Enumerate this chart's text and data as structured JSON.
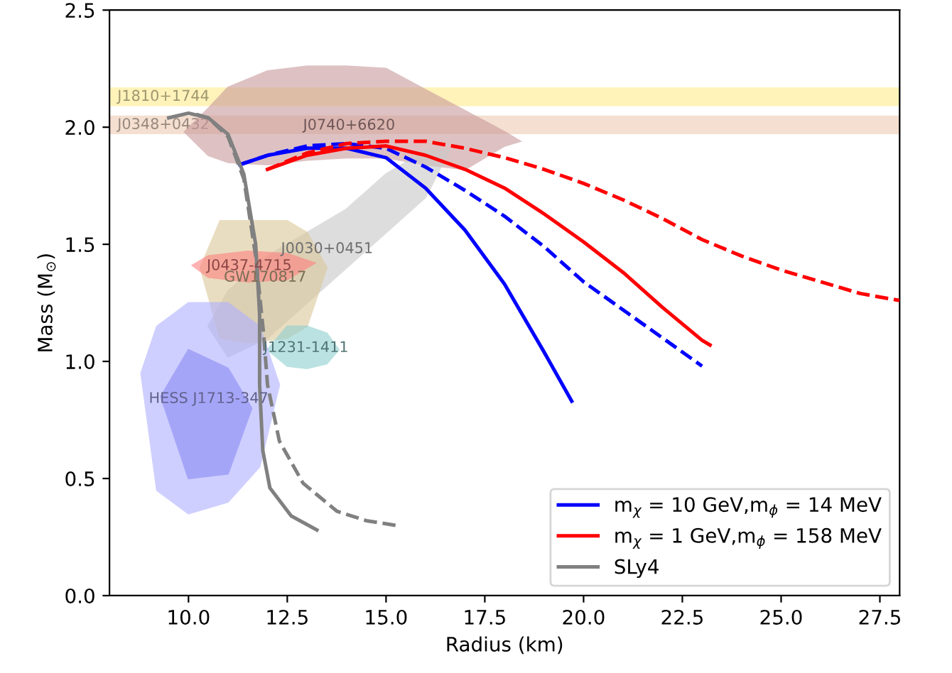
{
  "chart_data": {
    "type": "line",
    "xlabel": "Radius (km)",
    "ylabel": "Mass (M$_{⊙}$)",
    "xlim": [
      8,
      28
    ],
    "ylim": [
      0,
      2.5
    ],
    "xticks": [
      {
        "value": 10,
        "label": "10.0"
      },
      {
        "value": 12.5,
        "label": "12.5"
      },
      {
        "value": 15,
        "label": "15.0"
      },
      {
        "value": 17.5,
        "label": "17.5"
      },
      {
        "value": 20,
        "label": "20.0"
      },
      {
        "value": 22.5,
        "label": "22.5"
      },
      {
        "value": 25,
        "label": "25.0"
      },
      {
        "value": 27.5,
        "label": "27.5"
      }
    ],
    "yticks": [
      {
        "value": 0,
        "label": "0.0"
      },
      {
        "value": 0.5,
        "label": "0.5"
      },
      {
        "value": 1,
        "label": "1.0"
      },
      {
        "value": 1.5,
        "label": "1.5"
      },
      {
        "value": 2,
        "label": "2.0"
      },
      {
        "value": 2.5,
        "label": "2.5"
      }
    ],
    "grid": false,
    "legend": "bottom right",
    "bands": [
      {
        "axis": "y",
        "from": 2.09,
        "to": 2.17,
        "label": "J1810+1744",
        "color": "#fff2b3"
      },
      {
        "axis": "y",
        "from": 1.97,
        "to": 2.05,
        "label": "J0348+0432",
        "color": "#f3dccb"
      }
    ],
    "series": [
      {
        "type": "area",
        "name": "J0740+6620",
        "color": "#c99a9c",
        "x": [
          9.9,
          10.5,
          11,
          12,
          13,
          14,
          15,
          16,
          17,
          18,
          18.4,
          18,
          17,
          16,
          15,
          14,
          13,
          12,
          11,
          10.5
        ],
        "values": [
          1.98,
          2.08,
          2.17,
          2.24,
          2.26,
          2.26,
          2.25,
          2.16,
          2.07,
          1.98,
          1.94,
          1.92,
          1.82,
          1.84,
          1.87,
          1.87,
          1.86,
          1.84,
          1.85,
          1.88
        ]
      },
      {
        "type": "area",
        "name": "J0030+0451",
        "color": "#c8c8c8",
        "x": [
          10.5,
          11,
          12,
          13,
          14,
          15,
          16,
          16.6,
          16,
          15,
          14,
          13,
          12,
          11
        ],
        "values": [
          1.15,
          1.3,
          1.45,
          1.55,
          1.65,
          1.8,
          1.9,
          1.9,
          1.7,
          1.55,
          1.4,
          1.25,
          1.1,
          1.02
        ]
      },
      {
        "type": "area",
        "name": "GW170817",
        "color": "#dcc899",
        "x": [
          10.3,
          10.8,
          11.5,
          12.5,
          13,
          13.5,
          13,
          12.5,
          11.5,
          10.8
        ],
        "values": [
          1.4,
          1.6,
          1.6,
          1.6,
          1.55,
          1.4,
          1.15,
          1.1,
          1.08,
          1.1
        ]
      },
      {
        "type": "area",
        "name": "J0437-4715",
        "color": "#ff8080",
        "x": [
          10.1,
          10.5,
          11.5,
          12.5,
          13.2,
          12.5,
          11.5,
          10.5
        ],
        "values": [
          1.41,
          1.45,
          1.47,
          1.46,
          1.42,
          1.35,
          1.34,
          1.36
        ]
      },
      {
        "type": "area",
        "name": "J1231-1411",
        "color": "#8fcfcf",
        "x": [
          12,
          12.5,
          13,
          13.5,
          13.8,
          13.5,
          13,
          12.5
        ],
        "values": [
          1.05,
          1.15,
          1.15,
          1.12,
          1.05,
          0.99,
          0.97,
          0.98
        ]
      },
      {
        "type": "area",
        "name": "HESS J1713-347",
        "color": "#b0b0ff",
        "x": [
          8.8,
          9.2,
          10,
          11,
          11.8,
          12.3,
          11.8,
          11,
          10,
          9.2
        ],
        "values": [
          0.95,
          1.15,
          1.25,
          1.25,
          1.15,
          0.9,
          0.55,
          0.4,
          0.35,
          0.45
        ]
      },
      {
        "type": "area",
        "color": "#8a8af5",
        "x": [
          9.3,
          10,
          11,
          11.6,
          11,
          10
        ],
        "values": [
          0.85,
          1.05,
          0.97,
          0.8,
          0.52,
          0.5
        ]
      },
      {
        "name": "m$_{χ}$ = 10 GeV,m$_{ϕ}$ = 14 MeV",
        "color": "#0000ff",
        "line_style": "solid",
        "x": [
          11.3,
          12,
          13,
          14,
          15,
          16,
          17,
          18,
          19,
          19.7
        ],
        "values": [
          1.84,
          1.88,
          1.91,
          1.91,
          1.87,
          1.74,
          1.56,
          1.33,
          1.04,
          0.83
        ]
      },
      {
        "color": "#0000ff",
        "line_style": "dashed",
        "x": [
          11.3,
          12,
          13,
          14,
          15,
          16,
          17,
          18,
          19,
          20,
          21,
          22,
          23
        ],
        "values": [
          1.84,
          1.88,
          1.92,
          1.93,
          1.91,
          1.83,
          1.73,
          1.62,
          1.49,
          1.34,
          1.22,
          1.1,
          0.98
        ]
      },
      {
        "name": "m$_{χ}$ = 1 GeV,m$_{ϕ}$ = 158 MeV",
        "color": "#ff0000",
        "line_style": "solid",
        "x": [
          12,
          13,
          14,
          15,
          16,
          17,
          18,
          19,
          20,
          21,
          22,
          23,
          23.2
        ],
        "values": [
          1.82,
          1.88,
          1.91,
          1.92,
          1.88,
          1.82,
          1.74,
          1.63,
          1.51,
          1.38,
          1.23,
          1.09,
          1.07
        ]
      },
      {
        "color": "#ff0000",
        "line_style": "dashed",
        "x": [
          12,
          13,
          14,
          15,
          16,
          17,
          18,
          19,
          20,
          21,
          22,
          23,
          24,
          25,
          26,
          27,
          28
        ],
        "values": [
          1.82,
          1.89,
          1.93,
          1.94,
          1.94,
          1.91,
          1.87,
          1.82,
          1.76,
          1.69,
          1.61,
          1.52,
          1.45,
          1.39,
          1.34,
          1.29,
          1.26
        ]
      },
      {
        "name": "SLy4",
        "color": "#808080",
        "line_style": "solid",
        "x": [
          13.25,
          12.6,
          12.06,
          11.88,
          11.8,
          11.8,
          11.7,
          11.4,
          11.0,
          10.5,
          10.0,
          9.5
        ],
        "values": [
          0.28,
          0.34,
          0.46,
          0.62,
          0.9,
          1.2,
          1.5,
          1.8,
          1.97,
          2.04,
          2.06,
          2.04
        ]
      },
      {
        "color": "#808080",
        "line_style": "dashed",
        "x": [
          15.24,
          14.5,
          13.76,
          12.9,
          12.3,
          12.0,
          11.9,
          11.7,
          11.4,
          11.0,
          10.5,
          10.1
        ],
        "values": [
          0.3,
          0.32,
          0.36,
          0.48,
          0.66,
          0.9,
          1.12,
          1.45,
          1.78,
          1.96,
          2.04,
          2.06
        ]
      }
    ]
  }
}
